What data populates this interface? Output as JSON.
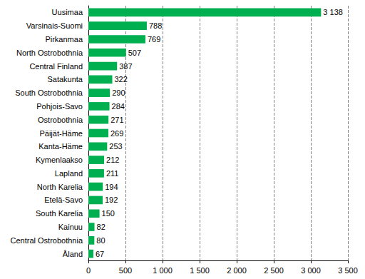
{
  "chart_data": {
    "type": "bar",
    "orientation": "horizontal",
    "categories": [
      "Uusimaa",
      "Varsinais-Suomi",
      "Pirkanmaa",
      "North Ostrobothnia",
      "Central Finland",
      "Satakunta",
      "South Ostrobothnia",
      "Pohjois-Savo",
      "Ostrobothnia",
      "Päijät-Häme",
      "Kanta-Häme",
      "Kymenlaakso",
      "Lapland",
      "North Karelia",
      "Etelä-Savo",
      "South Karelia",
      "Kainuu",
      "Central Ostrobothnia",
      "Åland"
    ],
    "values": [
      3138,
      788,
      769,
      507,
      387,
      322,
      290,
      284,
      271,
      269,
      253,
      212,
      211,
      194,
      192,
      150,
      82,
      80,
      67
    ],
    "value_labels": [
      "3 138",
      "788",
      "769",
      "507",
      "387",
      "322",
      "290",
      "284",
      "271",
      "269",
      "253",
      "212",
      "211",
      "194",
      "192",
      "150",
      "82",
      "80",
      "67"
    ],
    "color": "#00b050",
    "xlim": [
      0,
      3500
    ],
    "xticks": [
      0,
      500,
      {
        "value": 1000,
        "label": "1 000"
      },
      {
        "value": 1500,
        "label": "1 500"
      },
      {
        "value": 2000,
        "label": "2 000"
      },
      {
        "value": 2500,
        "label": "2 500"
      },
      {
        "value": 3000,
        "label": "3 000"
      },
      {
        "value": 3500,
        "label": "3 500"
      }
    ],
    "grid": true,
    "data_labels": true
  }
}
